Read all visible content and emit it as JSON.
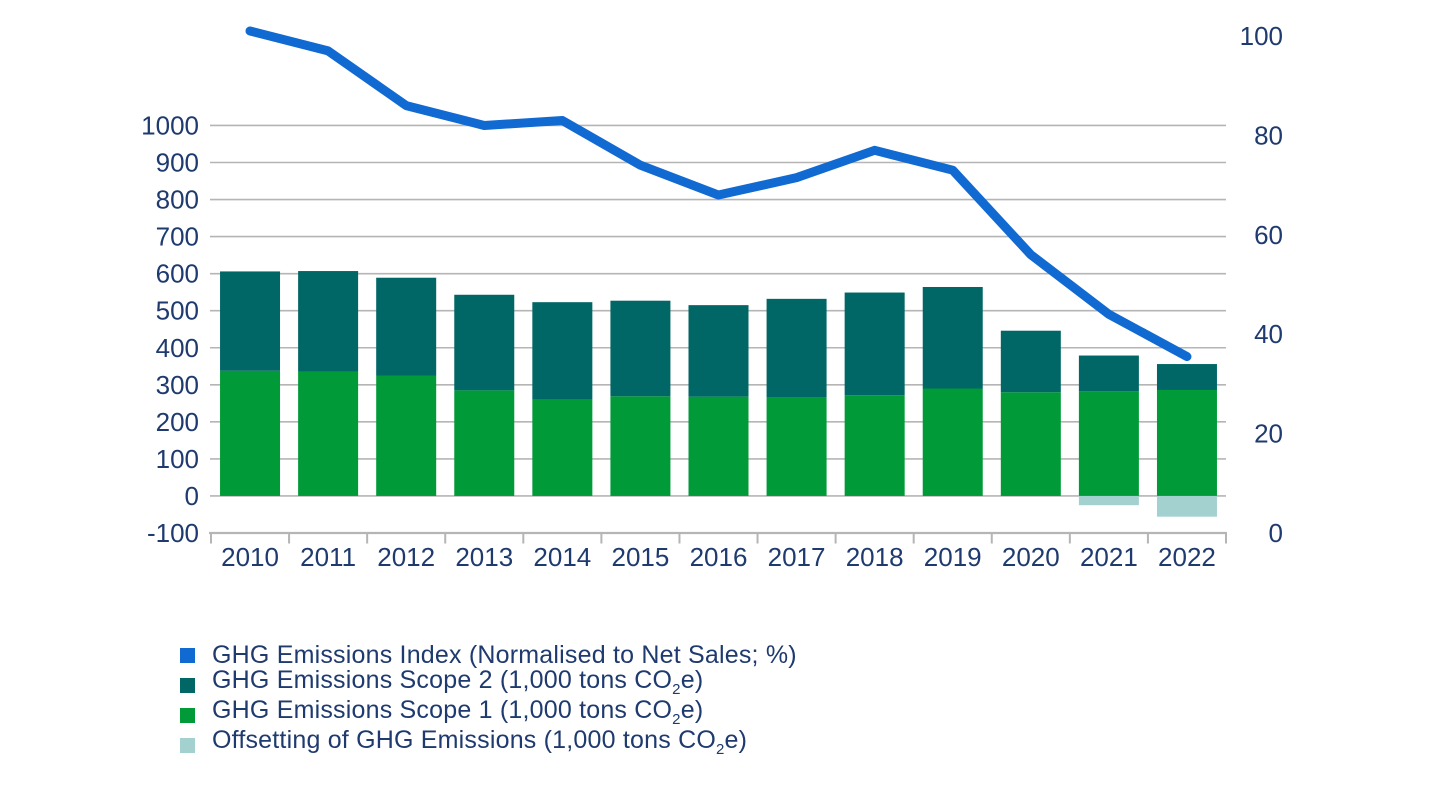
{
  "colors": {
    "background": "#FFFFFF",
    "text": "#1E3A6E",
    "grid": "#B5B5B5",
    "index_line": "#1169D2",
    "scope2": "#006666",
    "scope1": "#019A38",
    "offset": "#A3D1D0"
  },
  "chart_data": {
    "type": "combo-stacked-bar-line",
    "categories": [
      "2010",
      "2011",
      "2012",
      "2013",
      "2014",
      "2015",
      "2016",
      "2017",
      "2018",
      "2019",
      "2020",
      "2021",
      "2022"
    ],
    "series": [
      {
        "key": "index",
        "name": "GHG Emissions Index (Normalised to Net Sales; %)",
        "type": "line",
        "axis": "right",
        "color": "#1169D2",
        "values": [
          101,
          97,
          86,
          82,
          83,
          74,
          68,
          71.5,
          77,
          73,
          56,
          44,
          35.5
        ]
      },
      {
        "key": "scope2",
        "name": "GHG Emissions Scope 2 (1,000 tons CO2e)",
        "type": "bar-stacked",
        "axis": "left",
        "color": "#006666",
        "values": [
          268,
          271,
          265,
          258,
          263,
          258,
          247,
          266,
          277,
          274,
          166,
          96,
          70
        ]
      },
      {
        "key": "scope1",
        "name": "GHG Emissions Scope 1 (1,000 tons CO2e)",
        "type": "bar-stacked",
        "axis": "left",
        "color": "#019A38",
        "values": [
          338,
          336,
          324,
          285,
          260,
          269,
          268,
          266,
          272,
          290,
          280,
          283,
          286
        ]
      },
      {
        "key": "offset",
        "name": "Offsetting of GHG Emissions (1,000 tons CO2e)",
        "type": "bar",
        "axis": "left",
        "color": "#A3D1D0",
        "values": [
          0,
          0,
          0,
          0,
          0,
          0,
          0,
          0,
          0,
          0,
          0,
          -25,
          -56
        ]
      }
    ],
    "left_axis": {
      "ticks": [
        1000,
        900,
        800,
        700,
        600,
        500,
        400,
        300,
        200,
        100,
        0,
        -100
      ],
      "range": [
        -100,
        1100
      ],
      "gridlines_at": [
        0,
        100,
        200,
        300,
        400,
        500,
        600,
        700,
        800,
        900,
        1000
      ]
    },
    "right_axis": {
      "ticks": [
        100,
        80,
        60,
        40,
        20,
        0
      ],
      "range": [
        0,
        100
      ]
    },
    "legend": {
      "position": "bottom-left",
      "items": [
        {
          "key": "index",
          "color": "#1169D2",
          "parts": [
            {
              "t": "GHG Emissions Index (Normalised to Net Sales; %)"
            }
          ]
        },
        {
          "key": "scope2",
          "color": "#006666",
          "parts": [
            {
              "t": "GHG Emissions Scope 2 (1,000 tons CO"
            },
            {
              "t": "2",
              "sub": true
            },
            {
              "t": "e)"
            }
          ]
        },
        {
          "key": "scope1",
          "color": "#019A38",
          "parts": [
            {
              "t": "GHG Emissions Scope 1 (1,000 tons CO"
            },
            {
              "t": "2",
              "sub": true
            },
            {
              "t": "e)"
            }
          ]
        },
        {
          "key": "offset",
          "color": "#A3D1D0",
          "parts": [
            {
              "t": "Offsetting of GHG Emissions (1,000 tons CO"
            },
            {
              "t": "2",
              "sub": true
            },
            {
              "t": "e)"
            }
          ]
        }
      ]
    }
  }
}
